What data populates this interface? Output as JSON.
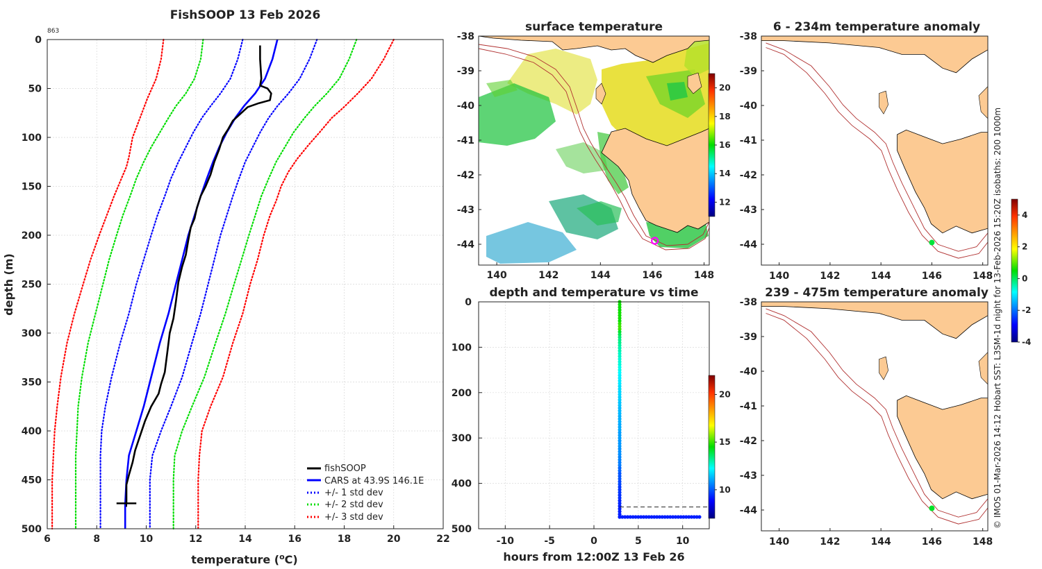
{
  "chart_data": [
    {
      "type": "line",
      "title": "FishSOOP 13 Feb 2026",
      "corner_label": "863",
      "xlabel": "temperature (",
      "xlabel_sup": "o",
      "xlabel_suffix": "C)",
      "ylabel": "depth (m)",
      "xlim": [
        6,
        22
      ],
      "ylim": [
        0,
        500
      ],
      "xticks": [
        6,
        8,
        10,
        12,
        14,
        16,
        18,
        20,
        22
      ],
      "yticks": [
        0,
        50,
        100,
        150,
        200,
        250,
        300,
        350,
        400,
        450,
        500
      ],
      "legend": [
        "fishSOOP",
        "CARS at 43.9S 146.1E",
        "+/- 1 std dev",
        "+/- 2 std dev",
        "+/- 3 std dev"
      ],
      "series": [
        {
          "name": "fishSOOP",
          "color": "#000000",
          "style": "solid",
          "points": [
            [
              14.6,
              6
            ],
            [
              14.6,
              20
            ],
            [
              14.65,
              40
            ],
            [
              14.6,
              47
            ],
            [
              14.9,
              50
            ],
            [
              15.05,
              55
            ],
            [
              15.0,
              62
            ],
            [
              14.55,
              65
            ],
            [
              14.1,
              69
            ],
            [
              13.8,
              76
            ],
            [
              13.5,
              83
            ],
            [
              13.3,
              92
            ],
            [
              13.1,
              100
            ],
            [
              12.95,
              112
            ],
            [
              12.75,
              125
            ],
            [
              12.6,
              138
            ],
            [
              12.4,
              150
            ],
            [
              12.2,
              160
            ],
            [
              12.05,
              172
            ],
            [
              11.95,
              183
            ],
            [
              11.8,
              192
            ],
            [
              11.7,
              205
            ],
            [
              11.6,
              220
            ],
            [
              11.45,
              232
            ],
            [
              11.3,
              248
            ],
            [
              11.2,
              268
            ],
            [
              11.1,
              285
            ],
            [
              10.95,
              300
            ],
            [
              10.85,
              320
            ],
            [
              10.75,
              340
            ],
            [
              10.6,
              352
            ],
            [
              10.5,
              362
            ],
            [
              10.2,
              375
            ],
            [
              9.95,
              390
            ],
            [
              9.75,
              405
            ],
            [
              9.55,
              420
            ],
            [
              9.45,
              432
            ],
            [
              9.3,
              445
            ],
            [
              9.2,
              455
            ],
            [
              9.2,
              470
            ],
            [
              9.2,
              474
            ]
          ]
        },
        {
          "name": "CARS at 43.9S 146.1E",
          "color": "#0000ff",
          "style": "solid",
          "points": [
            [
              15.3,
              0
            ],
            [
              15.1,
              20
            ],
            [
              14.8,
              40
            ],
            [
              14.4,
              55
            ],
            [
              13.95,
              68
            ],
            [
              13.6,
              80
            ],
            [
              13.25,
              95
            ],
            [
              12.95,
              110
            ],
            [
              12.7,
              125
            ],
            [
              12.45,
              142
            ],
            [
              12.2,
              160
            ],
            [
              11.95,
              180
            ],
            [
              11.7,
              200
            ],
            [
              11.45,
              225
            ],
            [
              11.2,
              250
            ],
            [
              10.9,
              280
            ],
            [
              10.55,
              310
            ],
            [
              10.2,
              345
            ],
            [
              9.9,
              375
            ],
            [
              9.6,
              400
            ],
            [
              9.3,
              425
            ],
            [
              9.2,
              450
            ],
            [
              9.15,
              475
            ],
            [
              9.15,
              500
            ]
          ]
        },
        {
          "name": "+/- 1 std dev",
          "color": "#0000ff",
          "style": "dotted",
          "points": [
            [
              13.9,
              0
            ],
            [
              13.7,
              20
            ],
            [
              13.4,
              40
            ],
            [
              13.0,
              55
            ],
            [
              12.6,
              68
            ],
            [
              12.25,
              80
            ],
            [
              11.9,
              95
            ],
            [
              11.6,
              110
            ],
            [
              11.3,
              125
            ],
            [
              11.0,
              142
            ],
            [
              10.75,
              160
            ],
            [
              10.45,
              180
            ],
            [
              10.2,
              200
            ],
            [
              9.9,
              225
            ],
            [
              9.6,
              250
            ],
            [
              9.3,
              280
            ],
            [
              8.95,
              310
            ],
            [
              8.6,
              345
            ],
            [
              8.35,
              375
            ],
            [
              8.2,
              400
            ],
            [
              8.15,
              425
            ],
            [
              8.15,
              450
            ],
            [
              8.15,
              475
            ],
            [
              8.15,
              500
            ]
          ]
        },
        {
          "name": "+/- 1 std dev",
          "color": "#0000ff",
          "style": "dotted",
          "points": [
            [
              16.9,
              0
            ],
            [
              16.6,
              20
            ],
            [
              16.2,
              40
            ],
            [
              15.75,
              55
            ],
            [
              15.3,
              68
            ],
            [
              14.95,
              80
            ],
            [
              14.6,
              95
            ],
            [
              14.3,
              110
            ],
            [
              14.0,
              125
            ],
            [
              13.75,
              142
            ],
            [
              13.5,
              160
            ],
            [
              13.25,
              180
            ],
            [
              13.0,
              200
            ],
            [
              12.75,
              225
            ],
            [
              12.5,
              250
            ],
            [
              12.2,
              280
            ],
            [
              11.85,
              310
            ],
            [
              11.45,
              345
            ],
            [
              11.0,
              375
            ],
            [
              10.6,
              400
            ],
            [
              10.25,
              425
            ],
            [
              10.15,
              450
            ],
            [
              10.15,
              475
            ],
            [
              10.15,
              500
            ]
          ]
        },
        {
          "name": "+/- 2 std dev",
          "color": "#00dd00",
          "style": "dotted",
          "points": [
            [
              12.3,
              0
            ],
            [
              12.2,
              20
            ],
            [
              11.95,
              40
            ],
            [
              11.6,
              55
            ],
            [
              11.2,
              68
            ],
            [
              10.9,
              80
            ],
            [
              10.55,
              95
            ],
            [
              10.2,
              110
            ],
            [
              9.9,
              125
            ],
            [
              9.6,
              142
            ],
            [
              9.35,
              160
            ],
            [
              9.05,
              180
            ],
            [
              8.8,
              200
            ],
            [
              8.5,
              225
            ],
            [
              8.25,
              250
            ],
            [
              7.95,
              280
            ],
            [
              7.65,
              310
            ],
            [
              7.4,
              345
            ],
            [
              7.25,
              375
            ],
            [
              7.2,
              400
            ],
            [
              7.15,
              425
            ],
            [
              7.15,
              450
            ],
            [
              7.15,
              475
            ],
            [
              7.15,
              500
            ]
          ]
        },
        {
          "name": "+/- 2 std dev",
          "color": "#00dd00",
          "style": "dotted",
          "points": [
            [
              18.5,
              0
            ],
            [
              18.2,
              20
            ],
            [
              17.8,
              40
            ],
            [
              17.3,
              55
            ],
            [
              16.8,
              68
            ],
            [
              16.4,
              80
            ],
            [
              15.95,
              95
            ],
            [
              15.6,
              110
            ],
            [
              15.25,
              125
            ],
            [
              14.95,
              142
            ],
            [
              14.65,
              160
            ],
            [
              14.4,
              180
            ],
            [
              14.15,
              200
            ],
            [
              13.85,
              225
            ],
            [
              13.55,
              250
            ],
            [
              13.2,
              280
            ],
            [
              12.8,
              310
            ],
            [
              12.35,
              345
            ],
            [
              11.85,
              375
            ],
            [
              11.45,
              400
            ],
            [
              11.15,
              425
            ],
            [
              11.1,
              450
            ],
            [
              11.1,
              475
            ],
            [
              11.1,
              500
            ]
          ]
        },
        {
          "name": "+/- 3 std dev",
          "color": "#ff0000",
          "style": "dotted",
          "points": [
            [
              10.7,
              0
            ],
            [
              10.6,
              20
            ],
            [
              10.4,
              40
            ],
            [
              10.05,
              60
            ],
            [
              9.75,
              80
            ],
            [
              9.45,
              100
            ],
            [
              9.3,
              120
            ],
            [
              9.2,
              130
            ],
            [
              8.95,
              145
            ],
            [
              8.7,
              160
            ],
            [
              8.4,
              180
            ],
            [
              8.1,
              200
            ],
            [
              7.75,
              225
            ],
            [
              7.45,
              250
            ],
            [
              7.1,
              280
            ],
            [
              6.8,
              310
            ],
            [
              6.55,
              345
            ],
            [
              6.4,
              375
            ],
            [
              6.3,
              400
            ],
            [
              6.25,
              425
            ],
            [
              6.2,
              450
            ],
            [
              6.2,
              475
            ],
            [
              6.2,
              500
            ]
          ]
        },
        {
          "name": "+/- 3 std dev",
          "color": "#ff0000",
          "style": "dotted",
          "points": [
            [
              20.0,
              0
            ],
            [
              19.6,
              20
            ],
            [
              19.1,
              40
            ],
            [
              18.55,
              55
            ],
            [
              17.95,
              70
            ],
            [
              17.5,
              80
            ],
            [
              17.0,
              95
            ],
            [
              16.55,
              108
            ],
            [
              16.1,
              122
            ],
            [
              15.75,
              135
            ],
            [
              15.45,
              150
            ],
            [
              15.25,
              165
            ],
            [
              15.0,
              180
            ],
            [
              14.75,
              200
            ],
            [
              14.5,
              225
            ],
            [
              14.2,
              250
            ],
            [
              13.9,
              280
            ],
            [
              13.5,
              310
            ],
            [
              13.1,
              345
            ],
            [
              12.6,
              375
            ],
            [
              12.25,
              400
            ],
            [
              12.15,
              425
            ],
            [
              12.1,
              450
            ],
            [
              12.1,
              475
            ],
            [
              12.1,
              500
            ]
          ]
        }
      ]
    },
    {
      "type": "heatmap",
      "title": "surface temperature",
      "xlim": [
        139.3,
        148.2
      ],
      "ylim": [
        -44.6,
        -38
      ],
      "xticks": [
        140,
        142,
        144,
        146,
        148
      ],
      "yticks": [
        -38,
        -39,
        -40,
        -41,
        -42,
        -43,
        -44
      ],
      "colorbar_ticks": [
        12,
        14,
        16,
        18,
        20
      ],
      "colorbar_range": [
        11,
        21
      ],
      "marker": {
        "lon": 146.1,
        "lat": -43.9,
        "color": "#ff00ff"
      }
    },
    {
      "type": "scatter",
      "title": "depth and temperature vs time",
      "xlabel": "hours from 12:00Z 13 Feb 26",
      "xlim": [
        -13,
        13
      ],
      "ylim": [
        0,
        500
      ],
      "xticks": [
        -10,
        -5,
        0,
        5,
        10
      ],
      "yticks": [
        0,
        100,
        200,
        300,
        400,
        500
      ],
      "colorbar_ticks": [
        10,
        15,
        20
      ],
      "colorbar_range": [
        7,
        22
      ],
      "dashed_depth": 452,
      "descent": {
        "x": 2.9,
        "depth_from": 0,
        "depth_to": 474
      },
      "bottom": {
        "x_from": 2.9,
        "x_to": 12,
        "depth": 474,
        "temp": 9.2
      }
    },
    {
      "type": "heatmap",
      "title": "6 - 234m temperature anomaly",
      "xlim": [
        139.3,
        148.2
      ],
      "ylim": [
        -44.6,
        -38
      ],
      "xticks": [
        140,
        142,
        144,
        146,
        148
      ],
      "yticks": [
        -38,
        -39,
        -40,
        -41,
        -42,
        -43,
        -44
      ],
      "marker": {
        "lon": 146.0,
        "lat": -43.95,
        "value": 0.2
      }
    },
    {
      "type": "heatmap",
      "title": "239 - 475m temperature anomaly",
      "xlim": [
        139.3,
        148.2
      ],
      "ylim": [
        -44.6,
        -38
      ],
      "xticks": [
        140,
        142,
        144,
        146,
        148
      ],
      "yticks": [
        -38,
        -39,
        -40,
        -41,
        -42,
        -43,
        -44
      ],
      "marker": {
        "lon": 146.0,
        "lat": -43.95,
        "value": 0.3
      }
    },
    {
      "type": "colorbar",
      "title": "anomaly colorbar",
      "range": [
        -4,
        5
      ],
      "ticks": [
        -4,
        -2,
        0,
        2,
        4
      ]
    }
  ],
  "side_note": "© IMOS 01-Mar-2026 14:12 Hobart SST: L3SM-1d night for 13-Feb-2026 15:20Z isobaths: 200  1000m",
  "colors": {
    "land": "#fcca93",
    "isobath": "#b03030"
  }
}
